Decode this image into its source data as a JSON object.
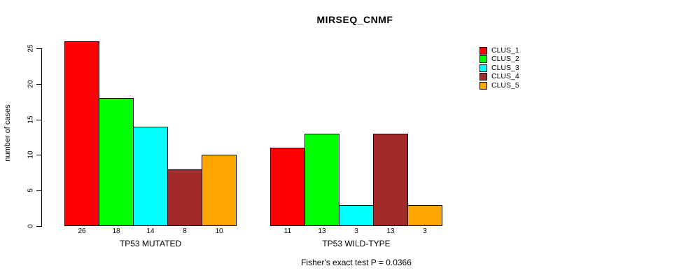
{
  "title": "MIRSEQ_CNMF",
  "chart_data": {
    "type": "bar",
    "title": "MIRSEQ_CNMF",
    "xlabel": "",
    "ylabel": "number of cases",
    "categories": [
      "TP53 MUTATED",
      "TP53 WILD-TYPE"
    ],
    "series": [
      {
        "name": "CLUS_1",
        "color": "#ff0000",
        "values": [
          26,
          11
        ]
      },
      {
        "name": "CLUS_2",
        "color": "#00ff00",
        "values": [
          18,
          13
        ]
      },
      {
        "name": "CLUS_3",
        "color": "#00ffff",
        "values": [
          14,
          3
        ]
      },
      {
        "name": "CLUS_4",
        "color": "#a52a2a",
        "values": [
          8,
          13
        ]
      },
      {
        "name": "CLUS_5",
        "color": "#ffa500",
        "values": [
          10,
          3
        ]
      }
    ],
    "bar_value_labels": [
      [
        "26",
        "18",
        "14",
        "8",
        "10"
      ],
      [
        "11",
        "13",
        "3",
        "13",
        "3"
      ]
    ],
    "yticks": [
      0,
      5,
      10,
      15,
      20,
      25
    ],
    "ylim": [
      0,
      26
    ],
    "grid": false,
    "legend_position": "right",
    "annotation": "Fisher's exact test P = 0.0366"
  },
  "colors": {
    "axis": "#000000",
    "background": "#ffffff",
    "text": "#000000"
  }
}
